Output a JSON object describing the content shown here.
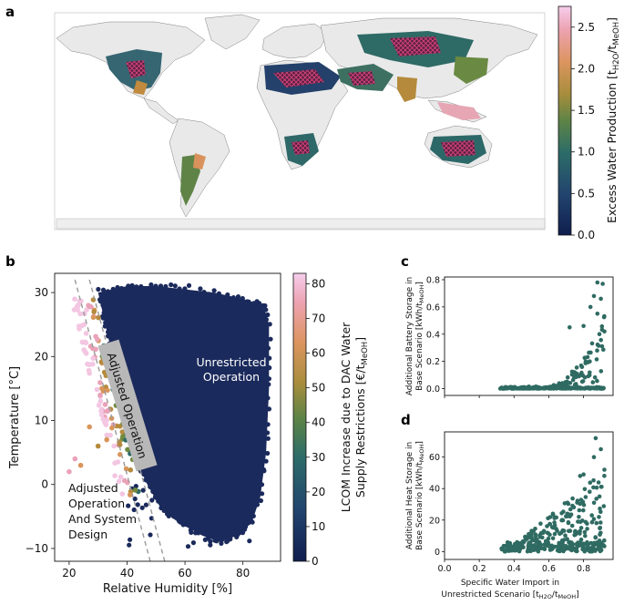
{
  "panels": {
    "a": "a",
    "b": "b",
    "c": "c",
    "d": "d"
  },
  "colors": {
    "navy": "#1b2a5c",
    "teal": "#2e6b66",
    "green": "#6f8a3e",
    "orange": "#d9955a",
    "pink": "#e9a2b8",
    "lightpink": "#f3c6e2",
    "land": "#e9e9e9",
    "ocean": "#ffffff",
    "scatter_cd": "#2f6b62"
  },
  "chart_data": [
    {
      "id": "map_a",
      "type": "heatmap",
      "colorbar": {
        "label": "Excess Water Production [t",
        "label_sub1": "H2O",
        "label_mid": "/t",
        "label_sub2": "MeOH",
        "label_end": "]",
        "ticks": [
          "0.0",
          "0.5",
          "1.0",
          "1.5",
          "2.0",
          "2.5"
        ],
        "tick_values": [
          0,
          0.5,
          1.0,
          1.5,
          2.0,
          2.5
        ],
        "range": [
          0,
          2.75
        ]
      }
    },
    {
      "id": "scatter_b",
      "type": "scatter",
      "xlabel": "Relative Humidity [%]",
      "ylabel": "Temperature [°C]",
      "x_ticks": [
        "20",
        "40",
        "60",
        "80"
      ],
      "x_tick_values": [
        20,
        40,
        60,
        80
      ],
      "y_ticks": [
        "−10",
        "0",
        "10",
        "20",
        "30"
      ],
      "y_tick_values": [
        -10,
        0,
        10,
        20,
        30
      ],
      "xlim": [
        15,
        93
      ],
      "ylim": [
        -12,
        33
      ],
      "annotations": {
        "unrestricted_1": "Unrestricted",
        "unrestricted_2": "Operation",
        "adjusted": "Adjusted Operation",
        "design_1": "Adjusted",
        "design_2": "Operation",
        "design_3": "And System",
        "design_4": "Design"
      },
      "colorbar": {
        "label_line1": "LCOM Increase due to DAC Water",
        "label_line2": "Supply Restrictions [€/t",
        "label_sub": "MeOH",
        "label_end": "]",
        "ticks": [
          "0",
          "10",
          "20",
          "30",
          "40",
          "50",
          "60",
          "70",
          "80"
        ],
        "tick_values": [
          0,
          10,
          20,
          30,
          40,
          50,
          60,
          70,
          80
        ],
        "range": [
          0,
          83
        ]
      }
    },
    {
      "id": "scatter_c",
      "type": "scatter",
      "ylabel_line1": "Additional Battery Storage in",
      "ylabel_line2": "Base Scenario [kWh/t",
      "ylabel_sub": "MeOH",
      "ylabel_end": "]",
      "x_tick_values": [
        0.0,
        0.2,
        0.4,
        0.6,
        0.8
      ],
      "y_ticks": [
        "0.0",
        "0.2",
        "0.4",
        "0.6",
        "0.8"
      ],
      "y_tick_values": [
        0.0,
        0.2,
        0.4,
        0.6,
        0.8
      ],
      "xlim": [
        0.0,
        0.97
      ],
      "ylim": [
        -0.05,
        0.82
      ]
    },
    {
      "id": "scatter_d",
      "type": "scatter",
      "xlabel_line1": "Specific Water Import in",
      "xlabel_line2": "Unrestricted Scenario [t",
      "xlabel_sub1": "H2O",
      "xlabel_mid": "/t",
      "xlabel_sub2": "MeOH",
      "xlabel_end": "]",
      "ylabel_line1": "Additional Heat Storage in",
      "ylabel_line2": "Base Scenario [kWh/t",
      "ylabel_sub": "MeOH",
      "ylabel_end": "]",
      "x_ticks": [
        "0.0",
        "0.2",
        "0.4",
        "0.6",
        "0.8"
      ],
      "x_tick_values": [
        0.0,
        0.2,
        0.4,
        0.6,
        0.8
      ],
      "y_ticks": [
        "0",
        "20",
        "40",
        "60"
      ],
      "y_tick_values": [
        0,
        20,
        40,
        60
      ],
      "xlim": [
        0.0,
        0.97
      ],
      "ylim": [
        -5,
        76
      ]
    }
  ]
}
